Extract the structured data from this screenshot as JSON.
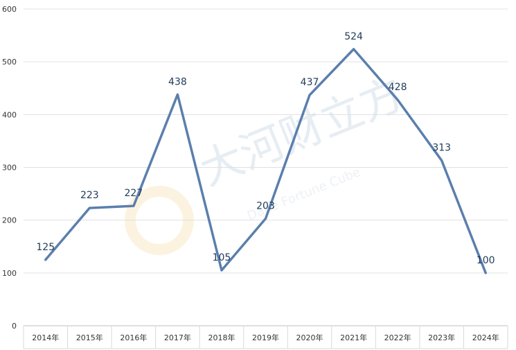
{
  "chart_data": {
    "type": "line",
    "categories": [
      "2014年",
      "2015年",
      "2016年",
      "2017年",
      "2018年",
      "2019年",
      "2020年",
      "2021年",
      "2022年",
      "2023年",
      "2024年"
    ],
    "series": [
      {
        "values": [
          125,
          223,
          227,
          438,
          105,
          203,
          437,
          524,
          428,
          313,
          100
        ]
      }
    ],
    "title": "",
    "xlabel": "",
    "ylabel": "",
    "ylim": [
      0,
      600
    ],
    "yticks": [
      0,
      100,
      200,
      300,
      400,
      500,
      600
    ],
    "grid": true,
    "data_labels": true,
    "legend": "none",
    "line_color": "#5b7fad",
    "grid_color": "#e0e0e0",
    "watermark": {
      "text": "大河财立方",
      "subtext": "Dahe Fortune Cube"
    }
  }
}
